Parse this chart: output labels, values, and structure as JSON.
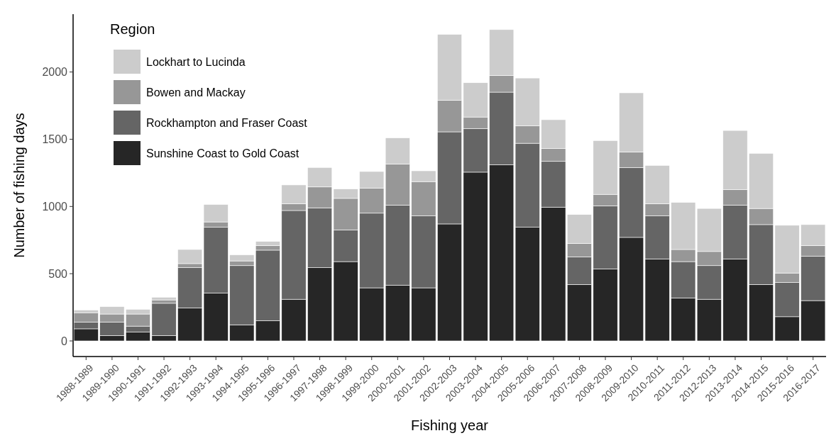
{
  "chart_data": {
    "type": "bar",
    "stacked": true,
    "xlabel": "Fishing year",
    "ylabel": "Number of fishing days",
    "legend_title": "Region",
    "legend": "top left",
    "ylim": [
      -116,
      2430
    ],
    "yticks": [
      0,
      500,
      1000,
      1500,
      2000
    ],
    "categories": [
      "1988-1989",
      "1989-1990",
      "1990-1991",
      "1991-1992",
      "1992-1993",
      "1993-1994",
      "1994-1995",
      "1995-1996",
      "1996-1997",
      "1997-1998",
      "1998-1999",
      "1999-2000",
      "2000-2001",
      "2001-2002",
      "2002-2003",
      "2003-2004",
      "2004-2005",
      "2005-2006",
      "2006-2007",
      "2007-2008",
      "2008-2009",
      "2009-2010",
      "2010-2011",
      "2011-2012",
      "2012-2013",
      "2013-2014",
      "2014-2015",
      "2015-2016",
      "2016-2017"
    ],
    "series": [
      {
        "name": "Sunshine Coast to Gold Coast",
        "color": "#262626",
        "values": [
          90,
          40,
          65,
          40,
          245,
          355,
          120,
          150,
          310,
          545,
          590,
          395,
          415,
          395,
          870,
          1255,
          1310,
          845,
          995,
          420,
          535,
          770,
          610,
          320,
          310,
          610,
          420,
          180,
          300
        ]
      },
      {
        "name": "Rockhampton and Fraser Coast",
        "color": "#656565",
        "values": [
          50,
          100,
          45,
          240,
          300,
          490,
          440,
          525,
          660,
          445,
          235,
          555,
          595,
          535,
          685,
          325,
          540,
          625,
          340,
          205,
          470,
          520,
          320,
          270,
          250,
          400,
          445,
          255,
          330
        ]
      },
      {
        "name": "Bowen and Mackay",
        "color": "#979797",
        "values": [
          70,
          60,
          90,
          25,
          30,
          40,
          35,
          35,
          50,
          155,
          235,
          185,
          305,
          255,
          235,
          85,
          125,
          130,
          95,
          100,
          85,
          115,
          90,
          90,
          105,
          115,
          120,
          70,
          80
        ]
      },
      {
        "name": "Lockhart to Lucinda",
        "color": "#cccccc",
        "values": [
          20,
          55,
          35,
          20,
          105,
          130,
          45,
          30,
          140,
          145,
          70,
          125,
          195,
          80,
          490,
          255,
          340,
          355,
          215,
          215,
          400,
          440,
          285,
          350,
          320,
          440,
          410,
          355,
          155
        ]
      }
    ]
  }
}
